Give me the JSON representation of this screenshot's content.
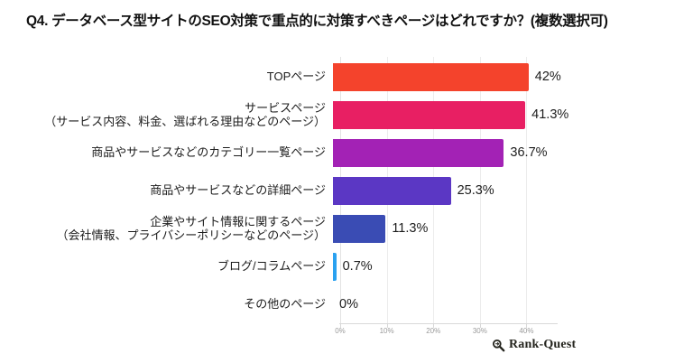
{
  "title": "Q4. データベース型サイトのSEO対策で重点的に対策すべきページはどれですか？(複数選択可)",
  "watermark": {
    "brand": "Rank-Quest"
  },
  "chart_data": {
    "type": "bar",
    "orientation": "horizontal",
    "title": "Q4. データベース型サイトのSEO対策で重点的に対策すべきページはどれですか？(複数選択可)",
    "categories": [
      [
        "TOPページ"
      ],
      [
        "サービスページ",
        "（サービス内容、料金、選ばれる理由などのページ）"
      ],
      [
        "商品やサービスなどのカテゴリー一覧ページ"
      ],
      [
        "商品やサービスなどの詳細ページ"
      ],
      [
        "企業やサイト情報に関するページ",
        "（会社情報、プライバシーポリシーなどのページ）"
      ],
      [
        "ブログ/コラムページ"
      ],
      [
        "その他のページ"
      ]
    ],
    "values": [
      42,
      41.3,
      36.7,
      25.3,
      11.3,
      0.7,
      0
    ],
    "value_labels": [
      "42%",
      "41.3%",
      "36.7%",
      "25.3%",
      "11.3%",
      "0.7%",
      "0%"
    ],
    "bar_colors": [
      "#f4432c",
      "#e81f63",
      "#a322b5",
      "#5b37c4",
      "#3a4cb4",
      "#2aa1f0",
      "#2aa1f0"
    ],
    "xlabel": "",
    "ylabel": "",
    "xlim": [
      0,
      46.5
    ],
    "x_ticks": [
      {
        "label": "0%",
        "value": 0
      },
      {
        "label": "10%",
        "value": 10
      },
      {
        "label": "20%",
        "value": 20
      },
      {
        "label": "30%",
        "value": 30
      },
      {
        "label": "40%",
        "value": 40
      }
    ],
    "grid": true,
    "legend": false
  }
}
